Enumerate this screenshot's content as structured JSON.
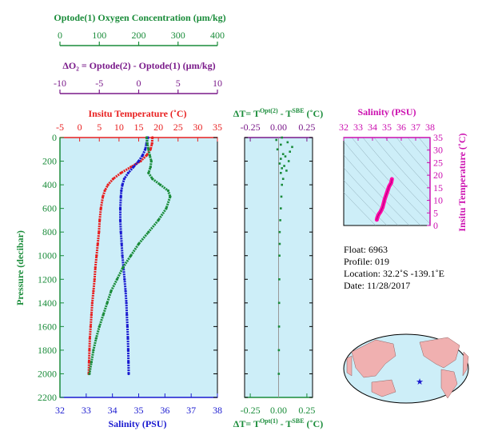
{
  "colors": {
    "oxygen": "#1a8c3a",
    "delta_o2": "#7a1a8a",
    "temperature": "#e82020",
    "salinity": "#1a1ad0",
    "pressure_axis": "#1a8c3a",
    "ts_axis": "#cc10b0",
    "panel_bg": "#cdeef8",
    "deltat_axis": "#1a8c3a"
  },
  "oxygen_axis": {
    "label": "Optode(1) Oxygen Concentration (µm/kg)",
    "ticks": [
      "0",
      "100",
      "200",
      "300",
      "400"
    ],
    "range": [
      0,
      400
    ]
  },
  "delta_o2_axis": {
    "label": "ΔO₂ = Optode(2) - Optode(1)     (µm/kg)",
    "ticks": [
      "-10",
      "-5",
      "0",
      "5",
      "10"
    ],
    "range": [
      -10,
      10
    ]
  },
  "main_panel": {
    "temp_label": "Insitu Temperature (˚C)",
    "temp_ticks": [
      "-5",
      "0",
      "5",
      "10",
      "15",
      "20",
      "25",
      "30",
      "35"
    ],
    "temp_range": [
      -5,
      35
    ],
    "pressure_label": "Pressure (decibar)",
    "pressure_ticks": [
      "0",
      "200",
      "400",
      "600",
      "800",
      "1000",
      "1200",
      "1400",
      "1600",
      "1800",
      "2000",
      "2200"
    ],
    "pressure_range": [
      0,
      2200
    ],
    "sal_label": "Salinity (PSU)",
    "sal_ticks": [
      "32",
      "33",
      "34",
      "35",
      "36",
      "37",
      "38"
    ],
    "sal_range": [
      32,
      38
    ]
  },
  "delta_t_panel": {
    "top_label_main": "ΔT= T",
    "top_label_sup1": "Opt(2)",
    "top_label_mid": " - T",
    "top_label_sup2": "SBE",
    "top_label_end": " (˚C)",
    "bottom_label_main": "ΔT= T",
    "bottom_label_sup1": "Opt(1)",
    "bottom_label_mid": " - T",
    "bottom_label_sup2": "SBE",
    "bottom_label_end": " (˚C)",
    "ticks": [
      "-0.25",
      "0.00",
      "0.25"
    ],
    "range": [
      -0.3,
      0.3
    ]
  },
  "ts_panel": {
    "sal_label": "Salinity (PSU)",
    "sal_ticks": [
      "32",
      "33",
      "34",
      "35",
      "36",
      "37",
      "38"
    ],
    "sal_range": [
      32,
      38
    ],
    "temp_label": "Insitu Temperature (˚C)",
    "temp_ticks": [
      "0",
      "5",
      "10",
      "15",
      "20",
      "25",
      "30",
      "35"
    ],
    "temp_range": [
      0,
      35
    ]
  },
  "info": {
    "float": "Float:  6963",
    "profile": "Profile:  019",
    "location": "Location:  32.2˚S  -139.1˚E",
    "date": "Date:  11/28/2017"
  },
  "chart_data": {
    "type": "line",
    "pressure": [
      0,
      50,
      100,
      150,
      200,
      250,
      300,
      350,
      400,
      450,
      500,
      600,
      700,
      800,
      900,
      1000,
      1100,
      1200,
      1300,
      1400,
      1500,
      1600,
      1700,
      1800,
      1900,
      2000
    ],
    "series": [
      {
        "name": "Insitu Temperature",
        "values": [
          18.5,
          18.4,
          18.0,
          17.0,
          15.5,
          13.0,
          10.5,
          8.5,
          7.2,
          6.4,
          5.9,
          5.4,
          5.1,
          4.9,
          4.6,
          4.3,
          4.0,
          3.8,
          3.5,
          3.2,
          3.0,
          2.8,
          2.6,
          2.5,
          2.4,
          2.3
        ]
      },
      {
        "name": "Salinity",
        "values": [
          35.35,
          35.3,
          35.25,
          35.15,
          35.0,
          34.8,
          34.6,
          34.45,
          34.38,
          34.34,
          34.32,
          34.3,
          34.3,
          34.32,
          34.35,
          34.38,
          34.42,
          34.46,
          34.5,
          34.53,
          34.55,
          34.57,
          34.59,
          34.6,
          34.61,
          34.62
        ]
      },
      {
        "name": "Optode(1) Oxygen Concentration",
        "values": [
          220,
          222,
          225,
          228,
          232,
          230,
          225,
          235,
          255,
          275,
          280,
          270,
          250,
          225,
          200,
          180,
          160,
          145,
          130,
          120,
          110,
          100,
          92,
          85,
          80,
          75
        ]
      }
    ],
    "delta_t": {
      "pressure": [
        0,
        20,
        40,
        60,
        80,
        100,
        120,
        140,
        160,
        180,
        200,
        220,
        240,
        260,
        280,
        300,
        350,
        400,
        500,
        600,
        700,
        800,
        900,
        1000,
        1200,
        1400,
        1600,
        1800,
        2000
      ],
      "values": [
        0.03,
        -0.02,
        0.08,
        0.02,
        0.12,
        -0.01,
        0.1,
        0.04,
        0.06,
        0.02,
        0.09,
        0.01,
        0.05,
        0.03,
        0.07,
        0.02,
        0.04,
        0.03,
        0.025,
        0.02,
        0.015,
        0.01,
        0.01,
        0.008,
        0.006,
        0.005,
        0.004,
        0.003,
        0.002
      ]
    },
    "ts": {
      "salinity": [
        34.3,
        34.33,
        34.38,
        34.45,
        34.55,
        34.7,
        34.85,
        35.0,
        35.15,
        35.3,
        35.35
      ],
      "temperature": [
        2.3,
        3.0,
        3.8,
        4.6,
        5.4,
        7.2,
        10.5,
        13.0,
        15.5,
        17.0,
        18.5
      ]
    }
  }
}
